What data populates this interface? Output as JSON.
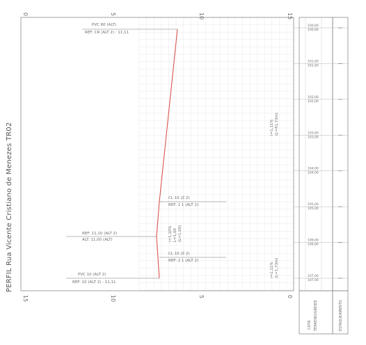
{
  "title": "PERFIL Rua Vicente Cristiano de Menezes TR02",
  "axis_top": {
    "ticks": [
      "0",
      "5",
      "10",
      "15"
    ]
  },
  "axis_bottom": {
    "ticks": [
      "15",
      "10",
      "5",
      "0"
    ]
  },
  "colors": {
    "profile_line": "#d9534f",
    "grid": "#e2e2e2",
    "frame": "#8a8a8a",
    "text": "#6a6a6a"
  },
  "annotations": {
    "top_end": [
      "PVC 80 (ALT)",
      "REF: CR (ALT 2) : 11,11"
    ],
    "mid_upper": [
      "CL 10 (Z 2)",
      "REF: 2 1 (ALT 2)"
    ],
    "mid_left": [
      "REF: 11,10 (ALT 2)",
      "ALT: 11,00 (ALT)"
    ],
    "mid_lower": [
      "CL 10 (Z 2)",
      "REF: 2 1 (ALT 2)"
    ],
    "bottom_end": [
      "PVC 10 (ALT 2)",
      "REF: 10 (ALT 2) : 11,11"
    ]
  },
  "slope_labels": {
    "upper": [
      "i=1,11%",
      "(L=41,73m)"
    ],
    "middle": [
      "i=1,10%",
      "L=1,00",
      "(L=1,00)"
    ],
    "lower": [
      "i=1,11%",
      "(L=1,73m)"
    ]
  },
  "station_labels": [
    [
      "100,00",
      "100,00"
    ],
    [
      "101,00",
      "101,00"
    ],
    [
      "102,00",
      "102,00"
    ],
    [
      "103,00",
      "103,00"
    ],
    [
      "104,00",
      "104,00"
    ],
    [
      "105,00",
      "105,00"
    ],
    [
      "106,00",
      "106,00"
    ],
    [
      "107,00",
      "107,00"
    ]
  ],
  "legend_cells": {
    "left": [
      "COTA",
      "TERRENO/GREIDE"
    ],
    "right": "ESTAQUEAMENTO"
  }
}
